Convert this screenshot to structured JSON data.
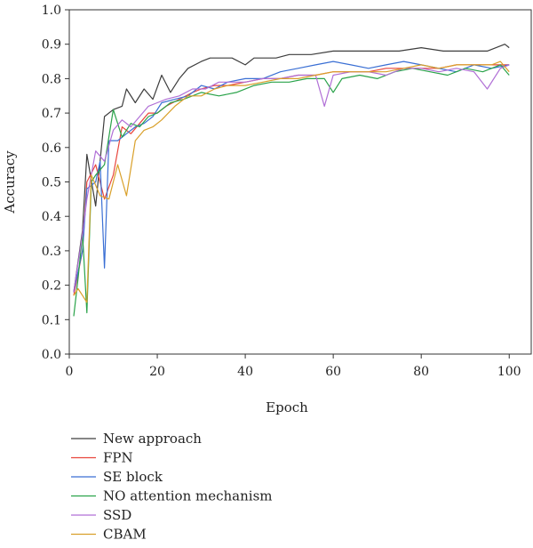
{
  "chart_data": {
    "type": "line",
    "title": "",
    "xlabel": "Epoch",
    "ylabel": "Accuracy",
    "xlim": [
      0,
      105
    ],
    "ylim": [
      0.0,
      1.0
    ],
    "xticks": [
      0,
      20,
      40,
      60,
      80,
      100
    ],
    "yticks": [
      "0.0",
      "0.1",
      "0.2",
      "0.3",
      "0.4",
      "0.5",
      "0.6",
      "0.7",
      "0.8",
      "0.9",
      "1.0"
    ],
    "grid": false,
    "legend_position": "bottom",
    "series": [
      {
        "name": "New approach",
        "color": "#3d3d3d",
        "x": [
          1,
          3,
          4,
          6,
          8,
          10,
          12,
          13,
          15,
          17,
          19,
          21,
          23,
          25,
          27,
          30,
          32,
          35,
          37,
          40,
          42,
          45,
          47,
          50,
          55,
          60,
          65,
          70,
          75,
          80,
          85,
          90,
          95,
          97,
          99,
          100
        ],
        "y": [
          0.18,
          0.36,
          0.58,
          0.43,
          0.69,
          0.71,
          0.72,
          0.77,
          0.73,
          0.77,
          0.74,
          0.81,
          0.76,
          0.8,
          0.83,
          0.85,
          0.86,
          0.86,
          0.86,
          0.84,
          0.86,
          0.86,
          0.86,
          0.87,
          0.87,
          0.88,
          0.88,
          0.88,
          0.88,
          0.89,
          0.88,
          0.88,
          0.88,
          0.89,
          0.9,
          0.89
        ]
      },
      {
        "name": "FPN",
        "color": "#e8453c",
        "x": [
          1,
          3,
          4,
          6,
          8,
          10,
          12,
          14,
          16,
          18,
          20,
          22,
          25,
          28,
          30,
          33,
          36,
          40,
          44,
          48,
          52,
          56,
          60,
          64,
          68,
          72,
          76,
          80,
          84,
          88,
          92,
          96,
          100
        ],
        "y": [
          0.17,
          0.3,
          0.5,
          0.55,
          0.45,
          0.52,
          0.66,
          0.64,
          0.67,
          0.7,
          0.7,
          0.72,
          0.74,
          0.76,
          0.77,
          0.78,
          0.78,
          0.79,
          0.8,
          0.8,
          0.81,
          0.81,
          0.82,
          0.82,
          0.82,
          0.83,
          0.83,
          0.83,
          0.83,
          0.84,
          0.84,
          0.84,
          0.84
        ]
      },
      {
        "name": "SE block",
        "color": "#3a6fd4",
        "x": [
          1,
          3,
          4,
          6,
          7,
          8,
          9,
          11,
          13,
          15,
          17,
          19,
          21,
          24,
          27,
          30,
          33,
          36,
          40,
          44,
          48,
          52,
          56,
          60,
          64,
          68,
          72,
          76,
          80,
          84,
          88,
          92,
          96,
          100
        ],
        "y": [
          0.18,
          0.3,
          0.48,
          0.5,
          0.56,
          0.25,
          0.62,
          0.62,
          0.64,
          0.66,
          0.67,
          0.69,
          0.73,
          0.74,
          0.75,
          0.78,
          0.77,
          0.79,
          0.8,
          0.8,
          0.82,
          0.83,
          0.84,
          0.85,
          0.84,
          0.83,
          0.84,
          0.85,
          0.84,
          0.83,
          0.82,
          0.84,
          0.83,
          0.84
        ]
      },
      {
        "name": "NO attention mechanism",
        "color": "#2aa34a",
        "x": [
          1,
          2,
          3,
          4,
          5,
          6,
          8,
          10,
          12,
          14,
          16,
          18,
          20,
          23,
          26,
          30,
          34,
          38,
          42,
          46,
          50,
          54,
          58,
          60,
          62,
          66,
          70,
          74,
          78,
          82,
          86,
          90,
          94,
          98,
          100
        ],
        "y": [
          0.11,
          0.22,
          0.35,
          0.12,
          0.5,
          0.52,
          0.55,
          0.71,
          0.63,
          0.67,
          0.66,
          0.69,
          0.7,
          0.73,
          0.74,
          0.76,
          0.75,
          0.76,
          0.78,
          0.79,
          0.79,
          0.8,
          0.8,
          0.76,
          0.8,
          0.81,
          0.8,
          0.82,
          0.83,
          0.82,
          0.81,
          0.83,
          0.82,
          0.84,
          0.81
        ]
      },
      {
        "name": "SSD",
        "color": "#b06fd6",
        "x": [
          1,
          3,
          4,
          6,
          8,
          10,
          12,
          14,
          16,
          18,
          20,
          22,
          25,
          28,
          31,
          34,
          37,
          40,
          44,
          48,
          52,
          56,
          58,
          60,
          64,
          68,
          72,
          76,
          80,
          84,
          88,
          92,
          95,
          98,
          100
        ],
        "y": [
          0.18,
          0.35,
          0.45,
          0.59,
          0.56,
          0.65,
          0.68,
          0.66,
          0.69,
          0.72,
          0.73,
          0.74,
          0.75,
          0.77,
          0.77,
          0.79,
          0.79,
          0.79,
          0.8,
          0.8,
          0.81,
          0.81,
          0.72,
          0.81,
          0.82,
          0.82,
          0.81,
          0.83,
          0.83,
          0.82,
          0.83,
          0.82,
          0.77,
          0.83,
          0.84
        ]
      },
      {
        "name": "CBAM",
        "color": "#d9a02a",
        "x": [
          1,
          2,
          3,
          4,
          5,
          7,
          9,
          11,
          13,
          15,
          17,
          19,
          21,
          24,
          27,
          30,
          33,
          36,
          40,
          44,
          48,
          52,
          56,
          60,
          64,
          68,
          72,
          76,
          80,
          84,
          88,
          92,
          96,
          98,
          100
        ],
        "y": [
          0.17,
          0.19,
          0.17,
          0.15,
          0.52,
          0.46,
          0.45,
          0.55,
          0.46,
          0.62,
          0.65,
          0.66,
          0.68,
          0.72,
          0.75,
          0.75,
          0.77,
          0.78,
          0.78,
          0.79,
          0.8,
          0.8,
          0.81,
          0.82,
          0.82,
          0.82,
          0.82,
          0.83,
          0.84,
          0.83,
          0.84,
          0.84,
          0.84,
          0.85,
          0.82
        ]
      }
    ]
  }
}
